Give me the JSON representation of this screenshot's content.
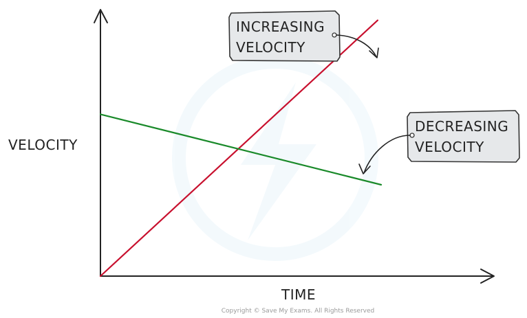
{
  "chart_data": {
    "type": "line",
    "xlabel": "TIME",
    "ylabel": "VELOCITY",
    "xlim": [
      0,
      10
    ],
    "ylim": [
      0,
      10
    ],
    "series": [
      {
        "name": "INCREASING VELOCITY",
        "color": "#c8102e",
        "x": [
          0,
          7.9
        ],
        "y": [
          0,
          9.8
        ]
      },
      {
        "name": "DECREASING VELOCITY",
        "color": "#1a8a2a",
        "x": [
          0,
          8.0
        ],
        "y": [
          6.2,
          3.5
        ]
      }
    ],
    "annotations": [
      {
        "lines": [
          "INCREASING",
          "VELOCITY"
        ],
        "target_series": 0
      },
      {
        "lines": [
          "DECREASING",
          "VELOCITY"
        ],
        "target_series": 1
      }
    ],
    "grid": false,
    "legend": "none"
  },
  "copyright": "Copyright © Save My Exams. All Rights Reserved",
  "colors": {
    "axis": "#222222",
    "tag_fill": "#e6e8ea",
    "tag_stroke": "#333333"
  }
}
